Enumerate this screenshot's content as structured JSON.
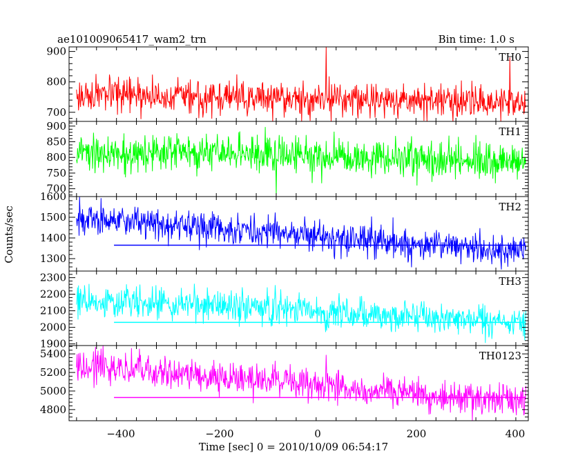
{
  "header": {
    "title": "ae101009065417_wam2_trn",
    "bin_time": "Bin time: 1.0 s"
  },
  "axes": {
    "ylabel": "Counts/sec",
    "xlabel": "Time [sec] 0 = 2010/10/09 06:54:17",
    "x_ticks": [
      "−400",
      "−200",
      "0",
      "200",
      "400"
    ]
  },
  "chart_data": [
    {
      "type": "line",
      "name": "TH0",
      "color": "#ff0000",
      "xlim": [
        -515,
        405
      ],
      "ylim": [
        670,
        915
      ],
      "yticks": [
        700,
        800,
        900
      ],
      "x_range": [
        -500,
        400
      ],
      "mean_start": 755,
      "mean_end": 735,
      "noise": 27,
      "spikes": [
        {
          "x": 0,
          "y": 915
        },
        {
          "x": 368,
          "y": 880
        }
      ],
      "background_line": null
    },
    {
      "type": "line",
      "name": "TH1",
      "color": "#00ff00",
      "xlim": [
        -515,
        405
      ],
      "ylim": [
        675,
        915
      ],
      "yticks": [
        700,
        750,
        800,
        850,
        900
      ],
      "x_range": [
        -500,
        400
      ],
      "mean_start": 820,
      "mean_end": 790,
      "noise": 30,
      "spikes": [
        {
          "x": -100,
          "y": 678
        }
      ],
      "background_line": null
    },
    {
      "type": "line",
      "name": "TH2",
      "color": "#0000ff",
      "xlim": [
        -515,
        405
      ],
      "ylim": [
        1240,
        1600
      ],
      "yticks": [
        1300,
        1400,
        1500,
        1600
      ],
      "x_range": [
        -500,
        400
      ],
      "mean_start": 1495,
      "mean_end": 1340,
      "noise": 38,
      "spikes": [],
      "background_line": {
        "x": [
          -425,
          400
        ],
        "y": 1365
      }
    },
    {
      "type": "line",
      "name": "TH3",
      "color": "#00ffff",
      "xlim": [
        -515,
        405
      ],
      "ylim": [
        1890,
        2340
      ],
      "yticks": [
        1900,
        2000,
        2100,
        2200,
        2300
      ],
      "x_range": [
        -500,
        400
      ],
      "mean_start": 2170,
      "mean_end": 2030,
      "noise": 50,
      "spikes": [],
      "background_line": {
        "x": [
          -425,
          400
        ],
        "y": 2030
      }
    },
    {
      "type": "line",
      "name": "TH0123",
      "color": "#ff00ff",
      "xlim": [
        -515,
        405
      ],
      "ylim": [
        4680,
        5490
      ],
      "yticks": [
        4800,
        5000,
        5200,
        5400
      ],
      "x_range": [
        -500,
        400
      ],
      "mean_start": 5270,
      "mean_end": 4880,
      "noise": 85,
      "spikes": [
        {
          "x": 0,
          "y": 5390
        }
      ],
      "background_line": {
        "x": [
          -425,
          400
        ],
        "y": 4930
      }
    }
  ]
}
